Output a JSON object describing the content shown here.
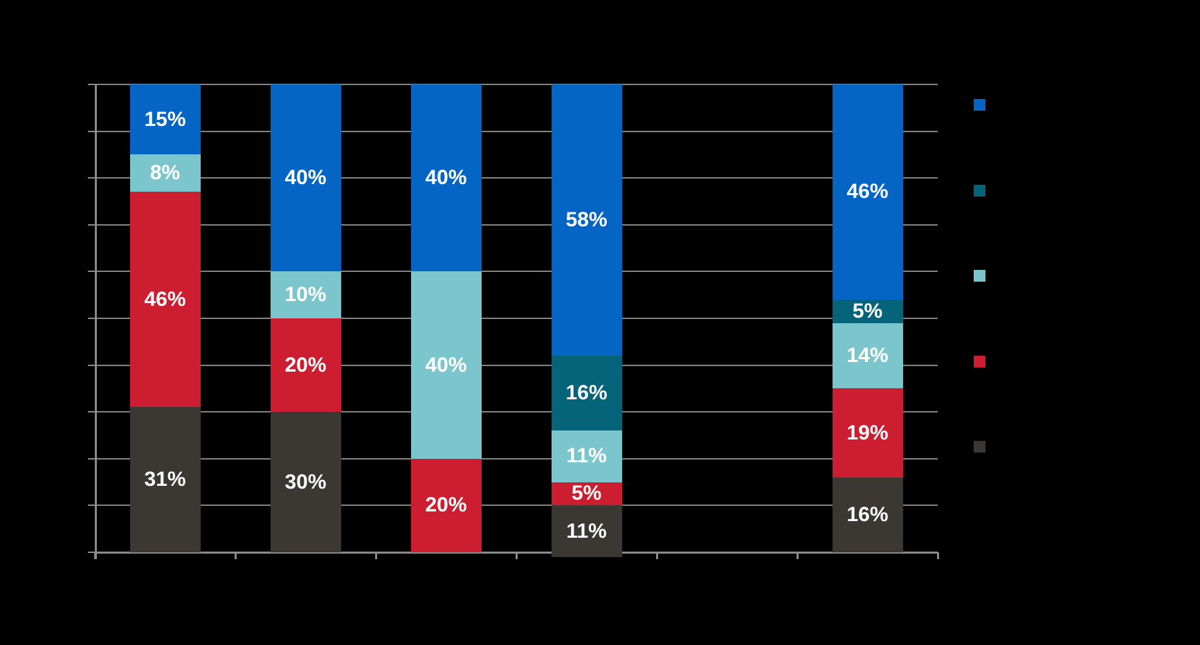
{
  "chart_data": {
    "type": "bar",
    "variant": "stacked-percentage-column",
    "title": "",
    "categories": [
      "",
      "",
      "",
      "",
      "",
      ""
    ],
    "series": [
      {
        "name": "blue",
        "color": "#0565C4",
        "values": [
          15,
          40,
          40,
          58,
          0,
          46
        ]
      },
      {
        "name": "dark-teal",
        "color": "#06647A",
        "values": [
          0,
          0,
          0,
          16,
          0,
          5
        ]
      },
      {
        "name": "light-teal",
        "color": "#7BC6CD",
        "values": [
          8,
          10,
          40,
          11,
          0,
          14
        ]
      },
      {
        "name": "red",
        "color": "#CD1D30",
        "values": [
          46,
          20,
          20,
          5,
          0,
          19
        ]
      },
      {
        "name": "charcoal",
        "color": "#3B3834",
        "values": [
          31,
          30,
          0,
          11,
          0,
          16
        ]
      }
    ],
    "data_label_format": "{value}%",
    "data_label_color": "#FFFFFF",
    "ylim": [
      0,
      100
    ],
    "grid": true,
    "gridline_step": 10,
    "axis_tick_labels_visible": false,
    "legend_position": "right",
    "legend": [
      {
        "label": "",
        "color": "#0565C4"
      },
      {
        "label": "",
        "color": "#06647A"
      },
      {
        "label": "",
        "color": "#7BC6CD"
      },
      {
        "label": "",
        "color": "#CD1D30"
      },
      {
        "label": "",
        "color": "#3B3834"
      }
    ]
  },
  "colors": {
    "background": "#000000",
    "gridline": "#838383",
    "axis": "#8A8A8A",
    "data_label": "#FFFFFF"
  }
}
